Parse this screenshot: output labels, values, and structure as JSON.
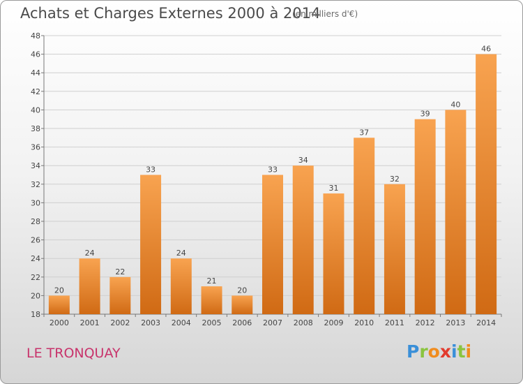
{
  "title": "Achats et Charges Externes 2000 à 2014",
  "subtitle": "(en milliers d'€)",
  "commune": "LE TRONQUAY",
  "logo": {
    "letters": [
      "P",
      "r",
      "o",
      "x",
      "i",
      "t",
      "i"
    ],
    "colors": [
      "#3a8fd8",
      "#8ac43f",
      "#f08c1e",
      "#e23b2e",
      "#3a8fd8",
      "#8ac43f",
      "#f08c1e"
    ]
  },
  "colors": {
    "bar_top": "#f8a350",
    "bar_bottom": "#d06a14",
    "grid": "#cfcfcf"
  },
  "chart_data": {
    "type": "bar",
    "categories": [
      "2000",
      "2001",
      "2002",
      "2003",
      "2004",
      "2005",
      "2006",
      "2007",
      "2008",
      "2009",
      "2010",
      "2011",
      "2012",
      "2013",
      "2014"
    ],
    "values": [
      20,
      24,
      22,
      33,
      24,
      21,
      20,
      33,
      34,
      31,
      37,
      32,
      39,
      40,
      46
    ],
    "ylim": [
      18,
      48
    ],
    "yticks": [
      18,
      20,
      22,
      24,
      26,
      28,
      30,
      32,
      34,
      36,
      38,
      40,
      42,
      44,
      46,
      48
    ],
    "data_labels": true,
    "grid": true
  }
}
